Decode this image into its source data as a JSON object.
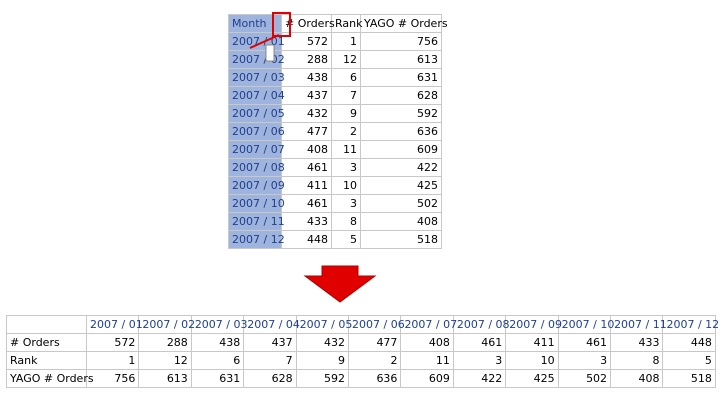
{
  "top_table": {
    "columns": [
      "Month",
      "# Orders",
      "Rank",
      "YAGO # Orders"
    ],
    "rows": [
      [
        "2007 / 01",
        572,
        1,
        756
      ],
      [
        "2007 / 02",
        288,
        12,
        613
      ],
      [
        "2007 / 03",
        438,
        6,
        631
      ],
      [
        "2007 / 04",
        437,
        7,
        628
      ],
      [
        "2007 / 05",
        432,
        9,
        592
      ],
      [
        "2007 / 06",
        477,
        2,
        636
      ],
      [
        "2007 / 07",
        408,
        11,
        609
      ],
      [
        "2007 / 08",
        461,
        3,
        422
      ],
      [
        "2007 / 09",
        411,
        10,
        425
      ],
      [
        "2007 / 10",
        461,
        3,
        502
      ],
      [
        "2007 / 11",
        433,
        8,
        408
      ],
      [
        "2007 / 12",
        448,
        5,
        518
      ]
    ]
  },
  "bottom_table": {
    "columns": [
      "2007 / 01",
      "2007 / 02",
      "2007 / 03",
      "2007 / 04",
      "2007 / 05",
      "2007 / 06",
      "2007 / 07",
      "2007 / 08",
      "2007 / 09",
      "2007 / 10",
      "2007 / 11",
      "2007 / 12"
    ],
    "rows": [
      {
        "label": "# Orders",
        "values": [
          572,
          288,
          438,
          437,
          432,
          477,
          408,
          461,
          411,
          461,
          433,
          448
        ]
      },
      {
        "label": "Rank",
        "values": [
          1,
          12,
          6,
          7,
          9,
          2,
          11,
          3,
          10,
          3,
          8,
          5
        ]
      },
      {
        "label": "YAGO # Orders",
        "values": [
          756,
          613,
          631,
          628,
          592,
          636,
          609,
          422,
          425,
          502,
          408,
          518
        ]
      }
    ]
  }
}
